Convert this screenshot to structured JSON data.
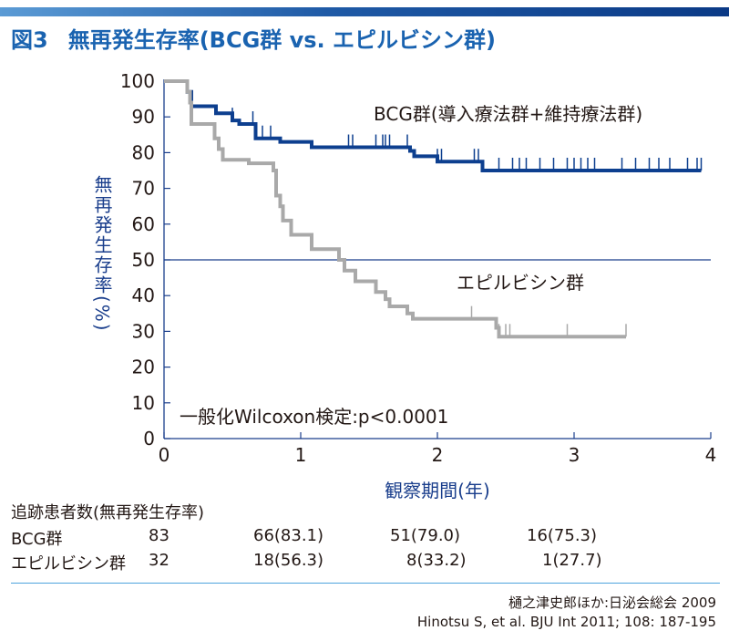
{
  "header": {
    "fig_no": "図3",
    "title": "無再発生存率(BCG群 vs. エピルビシン群)"
  },
  "chart_data": {
    "type": "line",
    "xlabel": "観察期間(年)",
    "ylabel": "無再発生存率(%)",
    "xlim": [
      0,
      4
    ],
    "ylim": [
      0,
      100
    ],
    "xticks": [
      "0",
      "1",
      "2",
      "3",
      "4"
    ],
    "yticks": [
      "0",
      "10",
      "20",
      "30",
      "40",
      "50",
      "60",
      "70",
      "80",
      "90",
      "100"
    ],
    "reference_line_y": 50,
    "series": [
      {
        "name": "BCG群(導入療法群+維持療法群)",
        "color": "#0d3f8f",
        "steps": [
          [
            0,
            100
          ],
          [
            0.17,
            97
          ],
          [
            0.2,
            93
          ],
          [
            0.38,
            91
          ],
          [
            0.5,
            89
          ],
          [
            0.55,
            88
          ],
          [
            0.67,
            86
          ],
          [
            0.67,
            84
          ],
          [
            0.85,
            83
          ],
          [
            1.08,
            81.5
          ],
          [
            1.8,
            80.5
          ],
          [
            1.83,
            79
          ],
          [
            2.0,
            77.5
          ],
          [
            2.33,
            75
          ],
          [
            3.93,
            75
          ]
        ],
        "censor_x": [
          0.5,
          0.65,
          0.72,
          0.78,
          1.35,
          1.38,
          1.55,
          1.6,
          1.62,
          1.65,
          1.78,
          2.0,
          2.03,
          2.27,
          2.3,
          2.45,
          2.55,
          2.6,
          2.65,
          2.75,
          2.85,
          2.95,
          3.0,
          3.05,
          3.1,
          3.15,
          3.35,
          3.45,
          3.55,
          3.62,
          3.7,
          3.83,
          3.9,
          3.93
        ]
      },
      {
        "name": "エピルビシン群",
        "color": "#a9a9a9",
        "steps": [
          [
            0,
            100
          ],
          [
            0.17,
            97
          ],
          [
            0.19,
            94
          ],
          [
            0.2,
            88
          ],
          [
            0.37,
            84
          ],
          [
            0.4,
            81
          ],
          [
            0.43,
            78
          ],
          [
            0.62,
            77
          ],
          [
            0.8,
            75
          ],
          [
            0.82,
            68
          ],
          [
            0.85,
            65
          ],
          [
            0.87,
            61
          ],
          [
            0.93,
            57
          ],
          [
            1.08,
            53
          ],
          [
            1.28,
            50
          ],
          [
            1.32,
            47
          ],
          [
            1.4,
            44
          ],
          [
            1.55,
            41
          ],
          [
            1.62,
            39
          ],
          [
            1.65,
            37
          ],
          [
            1.78,
            35
          ],
          [
            1.82,
            33.5
          ],
          [
            2.43,
            31
          ],
          [
            2.45,
            28.5
          ],
          [
            3.38,
            28.5
          ]
        ],
        "censor_x": [
          2.25,
          2.45,
          2.5,
          2.53,
          2.95,
          3.38
        ]
      }
    ],
    "annotations": {
      "bcg_label": "BCG群(導入療法群+維持療法群)",
      "epi_label": "エピルビシン群",
      "test": "一般化Wilcoxon検定:p<0.0001"
    }
  },
  "at_risk": {
    "title": "追跡患者数(無再発生存率)",
    "rows": [
      {
        "label": "BCG群",
        "values": [
          "83",
          "66(83.1)",
          "51(79.0)",
          "16(75.3)"
        ]
      },
      {
        "label": "エピルビシン群",
        "values": [
          "32",
          "18(56.3)",
          "8(33.2)",
          "1(27.7)"
        ]
      }
    ]
  },
  "source": {
    "line1": "樋之津史郎ほか:日泌会総会 2009",
    "line2": "Hinotsu S, et al. BJU Int 2011; 108: 187-195"
  },
  "colors": {
    "accent": "#1a63b0",
    "axis": "#1a3e8c",
    "bcg": "#0d3f8f",
    "epi": "#a9a9a9"
  }
}
